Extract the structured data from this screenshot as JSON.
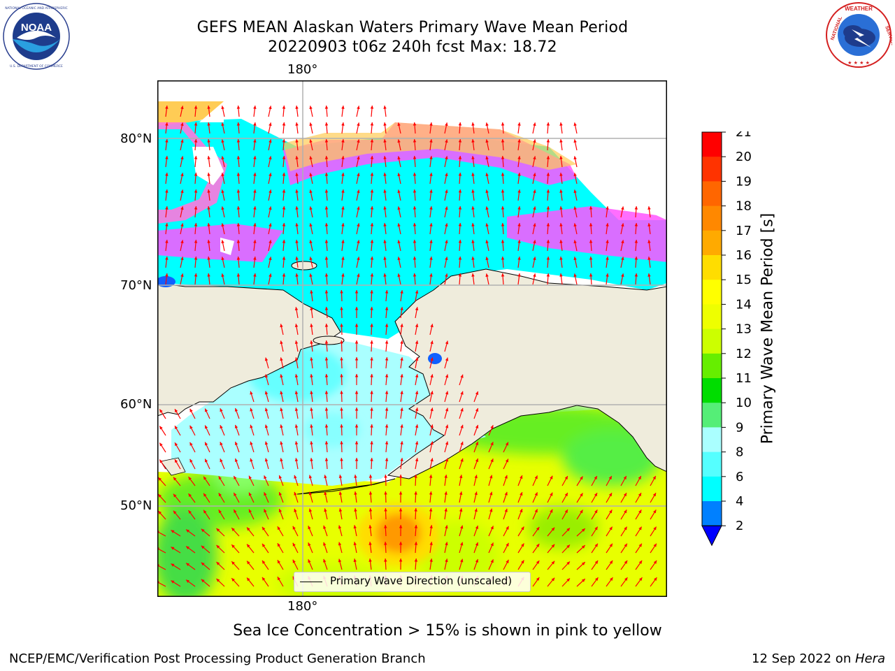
{
  "header": {
    "title_line1": "GEFS MEAN Alaskan Waters Primary Wave Mean Period",
    "title_line2": "20220903 t06z 240h fcst   Max: 18.72"
  },
  "logos": {
    "left": {
      "name": "noaa-logo",
      "text": "NOAA",
      "ring_text": "NATIONAL OCEANIC AND ATMOSPHERIC ADMINISTRATION · U.S. DEPARTMENT OF COMMERCE"
    },
    "right": {
      "name": "nws-logo",
      "ring_text": "NATIONAL WEATHER SERVICE"
    }
  },
  "map": {
    "top_lon_label": "180°",
    "bottom_lon_label": "180°",
    "lat_labels": [
      "80°N",
      "70°N",
      "60°N",
      "50°N"
    ],
    "legend_label": "Primary Wave Direction (unscaled)",
    "colors": {
      "land": "#efecdc",
      "ocean_short": "#00ffff",
      "ocean_mid": "#aaffff",
      "ocean_long": "#e8ff00",
      "green": "#55ee55",
      "orange": "#ff9900",
      "ice_pink": "#ff55ff",
      "ice_orange": "#ffcc55",
      "arrow": "#ff0000",
      "grid": "#b0b0b0"
    }
  },
  "colorbar": {
    "title": "Primary Wave Mean Period [s]",
    "ticks": [
      "21",
      "20",
      "19",
      "18",
      "17",
      "16",
      "15",
      "14",
      "13",
      "12",
      "11",
      "10",
      "9",
      "8",
      "6",
      "4",
      "2"
    ],
    "colors": [
      "#ff0000",
      "#ff3300",
      "#ff6600",
      "#ff8800",
      "#ffaa00",
      "#ffdd00",
      "#ffff00",
      "#eeff00",
      "#ccff00",
      "#66ee00",
      "#00dd00",
      "#55ee77",
      "#aaffff",
      "#55ffff",
      "#00ffff",
      "#0080ff",
      "#0000ff"
    ]
  },
  "footer": {
    "note": "Sea Ice Concentration > 15% is shown in pink to yellow",
    "left": "NCEP/EMC/Verification Post Processing Product Generation Branch",
    "right_date": "12 Sep 2022 on ",
    "right_machine": "Hera"
  }
}
